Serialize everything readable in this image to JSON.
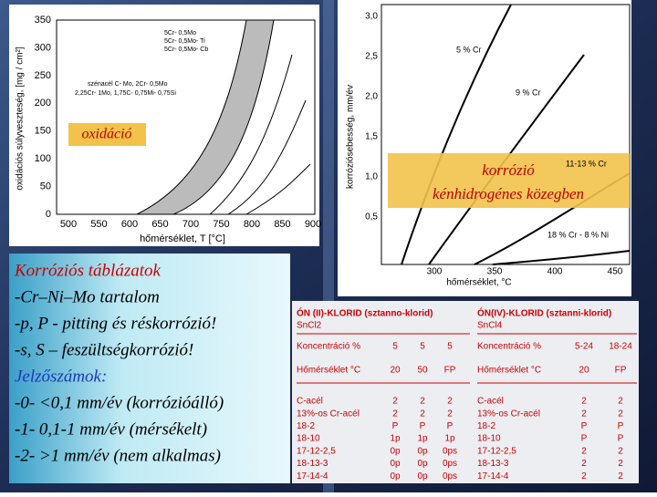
{
  "left_chart": {
    "ylabel": "oxidációs súlyveszteség, [mg / cm²]",
    "xlabel": "hőmérséklet, T [°C]",
    "yticks": [
      "350",
      "300",
      "250",
      "200",
      "150",
      "100",
      "50",
      "0"
    ],
    "xticks": [
      "500",
      "550",
      "600",
      "650",
      "700",
      "750",
      "800",
      "850",
      "900"
    ],
    "legend": [
      "5Cr- 0,5Mo",
      "5Cr- 0,5Mo- Ti",
      "5Cr- 0,5Mo- Cb",
      "szénacél C- Mo, 2Cr- 0,5Mo",
      "2,25Cr- 1Mo, 1,75C- 0,75Mi- 0,75Si"
    ],
    "annotation": "oxidáció"
  },
  "right_chart": {
    "ylabel": "korróziósebesség, mm/év",
    "xlabel": "hőmérséklet, °C",
    "yticks": [
      "3,0",
      "2,5",
      "2,0",
      "1,5",
      "1,0",
      "0,5"
    ],
    "xticks": [
      "300",
      "350",
      "400",
      "450"
    ],
    "curve_labels": [
      "5 % Cr",
      "9 % Cr",
      "11-13 % Cr",
      "18 % Cr - 8 % Ni"
    ],
    "annotation": [
      "korrózió",
      "kénhidrogénes közegben"
    ]
  },
  "textbox": {
    "lines": [
      "Korróziós táblázatok",
      "-Cr–Ni–Mo tartalom",
      "-p, P - pitting és réskorrózió!",
      "-s, S – feszültségkorrózió!",
      "Jelzőszámok:",
      "-0- <0,1 mm/év (korrózióálló)",
      "-1- 0,1-1 mm/év (mérsékelt)",
      "-2- >1 mm/év (nem alkalmas)"
    ]
  },
  "tables": [
    {
      "title": "ÓN (II)-KLORID (sztanno-klorid)",
      "formula": "SnCl2",
      "conditions": [
        [
          "Koncentráció %",
          "5",
          "5",
          "5"
        ],
        [
          "Hőmérséklet °C",
          "20",
          "50",
          "FP"
        ]
      ],
      "rows": [
        [
          "C-acél",
          "2",
          "2",
          "2"
        ],
        [
          "13%-os Cr-acél",
          "2",
          "2",
          "2"
        ],
        [
          "18-2",
          "P",
          "P",
          "P"
        ],
        [
          "18-10",
          "1p",
          "1p",
          "1p"
        ],
        [
          "17-12-2,5",
          "0p",
          "0p",
          "0ps"
        ],
        [
          "18-13-3",
          "0p",
          "0p",
          "0ps"
        ],
        [
          "17-14-4",
          "0p",
          "0p",
          "0ps"
        ]
      ]
    },
    {
      "title": "ÓN(IV)-KLORID (sztanni-klorid)",
      "formula": "SnCl4",
      "conditions": [
        [
          "Koncentráció %",
          "5-24",
          "18-24"
        ],
        [
          "Hőmérséklet °C",
          "20",
          "FP"
        ]
      ],
      "rows": [
        [
          "C-acél",
          "2",
          "2"
        ],
        [
          "13%-os Cr-acél",
          "2",
          "2"
        ],
        [
          "18-2",
          "P",
          "P"
        ],
        [
          "18-10",
          "P",
          "P"
        ],
        [
          "17-12-2,5",
          "2",
          "2"
        ],
        [
          "18-13-3",
          "2",
          "2"
        ],
        [
          "17-14-4",
          "2",
          "2"
        ]
      ]
    }
  ]
}
